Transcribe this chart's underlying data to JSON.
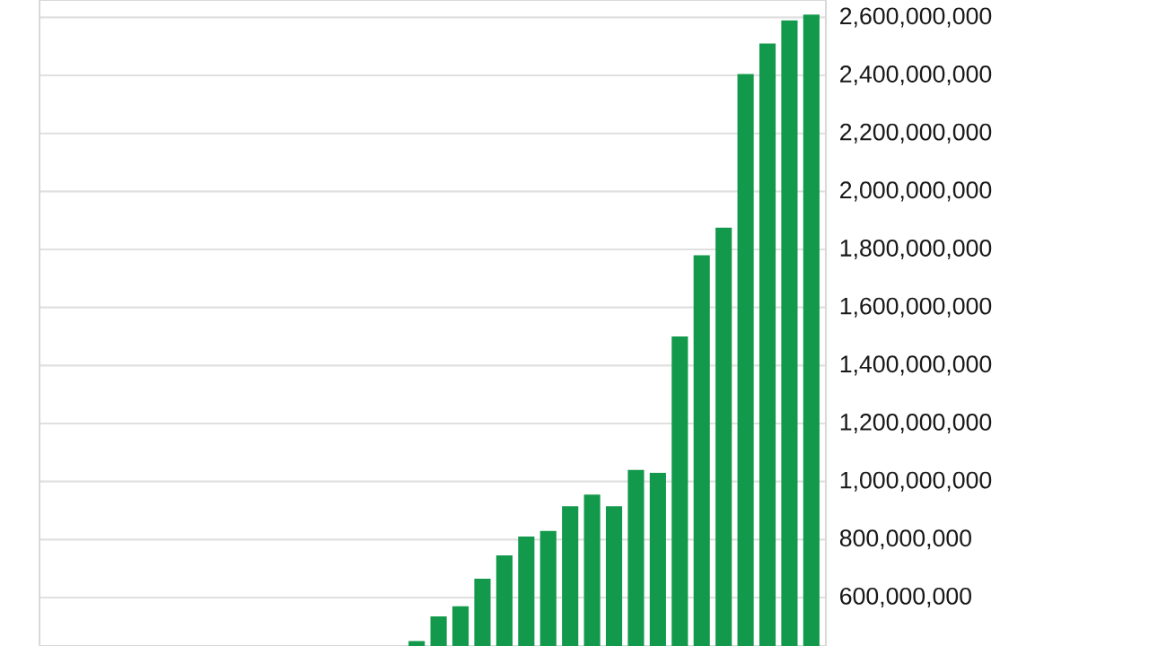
{
  "chart_data": {
    "type": "bar",
    "categories": [
      null,
      null,
      null,
      null,
      null,
      null,
      null,
      null,
      null,
      null,
      null,
      null,
      null,
      null,
      null,
      null,
      null,
      null,
      null
    ],
    "values": [
      450000000,
      535000000,
      570000000,
      665000000,
      745000000,
      810000000,
      830000000,
      915000000,
      955000000,
      915000000,
      1040000000,
      1030000000,
      1500000000,
      1780000000,
      1875000000,
      2405000000,
      2510000000,
      2590000000,
      2610000000
    ],
    "color": "#13994b",
    "ylim": [
      433000000,
      2660000000
    ],
    "yticks": [
      {
        "value": 600000000,
        "label": "600,000,000"
      },
      {
        "value": 800000000,
        "label": "800,000,000"
      },
      {
        "value": 1000000000,
        "label": "1,000,000,000"
      },
      {
        "value": 1200000000,
        "label": "1,200,000,000"
      },
      {
        "value": 1400000000,
        "label": "1,400,000,000"
      },
      {
        "value": 1600000000,
        "label": "1,600,000,000"
      },
      {
        "value": 1800000000,
        "label": "1,800,000,000"
      },
      {
        "value": 2000000000,
        "label": "2,000,000,000"
      },
      {
        "value": 2200000000,
        "label": "2,200,000,000"
      },
      {
        "value": 2400000000,
        "label": "2,400,000,000"
      },
      {
        "value": 2600000000,
        "label": "2,600,000,000"
      }
    ],
    "grid": "y",
    "tick_labels": "y"
  }
}
